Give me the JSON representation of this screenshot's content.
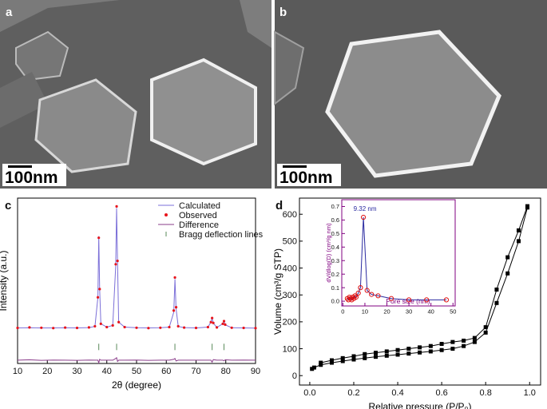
{
  "images": [
    {
      "label": "a",
      "scale_bar": "100nm"
    },
    {
      "label": "b",
      "scale_bar": "100nm"
    }
  ],
  "chart_data": [
    {
      "type": "line",
      "panel_label": "c",
      "x_label": "2θ (degree)",
      "y_label": "Intensity (a.u.)",
      "xlim": [
        10,
        90
      ],
      "xticks": [
        10,
        20,
        30,
        40,
        50,
        60,
        70,
        80,
        90
      ],
      "ylim": [
        0,
        100
      ],
      "legend": "top-right",
      "x": [
        10,
        14,
        18,
        22,
        26,
        30,
        34,
        36,
        37,
        37.3,
        37.6,
        38,
        40,
        42,
        43,
        43.3,
        43.6,
        44,
        46,
        50,
        54,
        58,
        61,
        62.5,
        62.9,
        63.3,
        64,
        66,
        70,
        74,
        75,
        75.4,
        75.8,
        77,
        79,
        79.4,
        79.8,
        82,
        86,
        90
      ],
      "series": [
        {
          "name": "Calculated",
          "color": "#7b6fd8",
          "style": "line",
          "values": [
            21.5,
            21.6,
            21.5,
            21.5,
            21.6,
            21.5,
            21.7,
            22.4,
            40,
            77,
            45,
            24,
            22,
            23,
            59,
            94,
            61,
            25,
            22,
            21.6,
            21.5,
            21.6,
            22,
            31,
            51,
            33,
            22.4,
            21.7,
            21.5,
            22,
            25,
            27.2,
            24.4,
            21.8,
            24,
            25.4,
            23.4,
            21.6,
            21.5,
            21.4
          ]
        },
        {
          "name": "Observed",
          "color": "#e8141b",
          "style": "markers",
          "values": [
            21.5,
            21.8,
            21.6,
            21.4,
            21.7,
            21.5,
            21.8,
            22.5,
            40,
            76,
            45,
            24,
            22,
            23,
            60,
            95,
            62,
            25,
            22,
            21.6,
            21.4,
            21.6,
            22,
            32,
            52,
            34,
            22.5,
            21.7,
            21.5,
            22,
            25,
            27.5,
            24.5,
            21.8,
            24,
            25.6,
            23.5,
            21.6,
            21.5,
            21.4
          ]
        },
        {
          "name": "Difference",
          "color": "#8a3c8a",
          "style": "line",
          "values": [
            2,
            2.2,
            1.9,
            2.1,
            2,
            1.9,
            2.1,
            2,
            2,
            0.5,
            2.5,
            2,
            2,
            2,
            3,
            3.5,
            1.2,
            2,
            2,
            2.1,
            1.9,
            2,
            2,
            2.5,
            3,
            1.5,
            2,
            2,
            2,
            2,
            2,
            0.8,
            2.3,
            2,
            2,
            1.6,
            2.2,
            2,
            2.1,
            2
          ]
        },
        {
          "name": "Bragg deflection lines",
          "color": "#5a8a5a",
          "style": "ticks",
          "x": [
            37.3,
            43.3,
            62.9,
            75.4,
            79.4
          ],
          "values": [
            10,
            10,
            10,
            10,
            10
          ]
        }
      ]
    },
    {
      "type": "line",
      "panel_label": "d",
      "x_label": "Relative pressure (P/P₀)",
      "y_label": "Volume (cm³/g STP)",
      "xlim": [
        -0.047,
        1.05
      ],
      "xticks": [
        {
          "value": 0,
          "label": "0.0"
        },
        0.2,
        0.4,
        0.6,
        0.8,
        {
          "value": 1,
          "label": "1.0"
        }
      ],
      "ylim": [
        -35,
        660
      ],
      "yticks": [
        0,
        100,
        200,
        300,
        400,
        500,
        600
      ],
      "series": [
        {
          "color": "#000000",
          "style": "line+squares",
          "x": [
            0.01,
            0.02,
            0.05,
            0.1,
            0.15,
            0.2,
            0.25,
            0.3,
            0.35,
            0.4,
            0.45,
            0.5,
            0.55,
            0.6,
            0.65,
            0.7,
            0.75,
            0.8,
            0.85,
            0.9,
            0.95,
            0.99
          ],
          "values": [
            25,
            30,
            40,
            48,
            54,
            60,
            65,
            70,
            74,
            78,
            82,
            86,
            90,
            95,
            100,
            110,
            125,
            160,
            270,
            380,
            500,
            625
          ]
        },
        {
          "color": "#000000",
          "style": "line+squares",
          "x": [
            0.99,
            0.95,
            0.9,
            0.85,
            0.8,
            0.75,
            0.7,
            0.65,
            0.6,
            0.55,
            0.5,
            0.45,
            0.4,
            0.35,
            0.3,
            0.25,
            0.2,
            0.15,
            0.1,
            0.05
          ],
          "values": [
            630,
            540,
            440,
            320,
            180,
            140,
            130,
            125,
            118,
            110,
            105,
            100,
            95,
            90,
            85,
            80,
            72,
            65,
            57,
            48
          ]
        }
      ]
    },
    {
      "type": "line",
      "x_label": "Pore size (nm)",
      "y_label": "dV/dlog(D) (cm³/g nm)",
      "annotation": "9.32 nm",
      "xlim": [
        -0.5,
        51
      ],
      "xticks": [
        0,
        10,
        20,
        30,
        40,
        50
      ],
      "ylim": [
        -0.035,
        0.75
      ],
      "yticks": [
        {
          "value": 0,
          "label": "0.0"
        },
        0.1,
        0.2,
        0.3,
        0.4,
        0.5,
        0.6,
        0.7
      ],
      "series": [
        {
          "color": "#2a2aa0",
          "style": "line+circles",
          "x": [
            2,
            2.5,
            3,
            3.5,
            4,
            4.5,
            5,
            5.5,
            6,
            7,
            8,
            9.32,
            11,
            13,
            16,
            22,
            30,
            38,
            47
          ],
          "values": [
            0.02,
            0.01,
            0.03,
            0.02,
            0.01,
            0.03,
            0.02,
            0.04,
            0.03,
            0.06,
            0.1,
            0.62,
            0.08,
            0.05,
            0.04,
            0.02,
            0.01,
            0.01,
            0.01
          ]
        }
      ]
    }
  ]
}
